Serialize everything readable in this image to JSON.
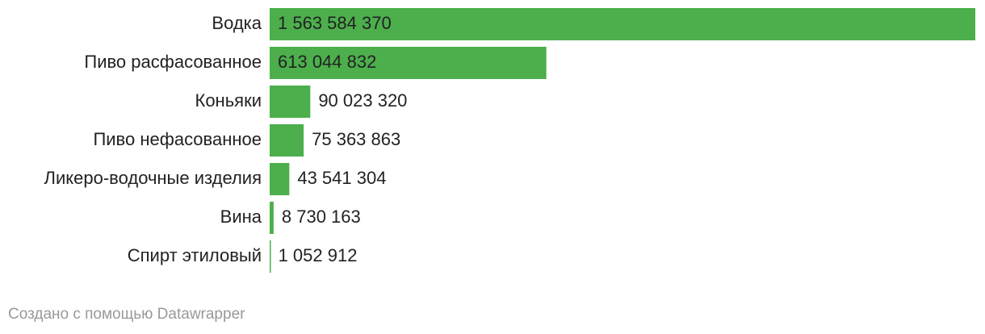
{
  "chart_data": {
    "type": "bar",
    "orientation": "horizontal",
    "categories": [
      "Водка",
      "Пиво расфасованное",
      "Коньяки",
      "Пиво нефасованное",
      "Ликеро-водочные изделия",
      "Вина",
      "Спирт этиловый"
    ],
    "values": [
      1563584370,
      613044832,
      90023320,
      75363863,
      43541304,
      8730163,
      1052912
    ],
    "value_labels": [
      "1 563 584 370",
      "613 044 832",
      "90 023 320",
      "75 363 863",
      "43 541 304",
      "8 730 163",
      "1 052 912"
    ],
    "color": "#4caf4c"
  },
  "footer": "Создано с помощью Datawrapper"
}
